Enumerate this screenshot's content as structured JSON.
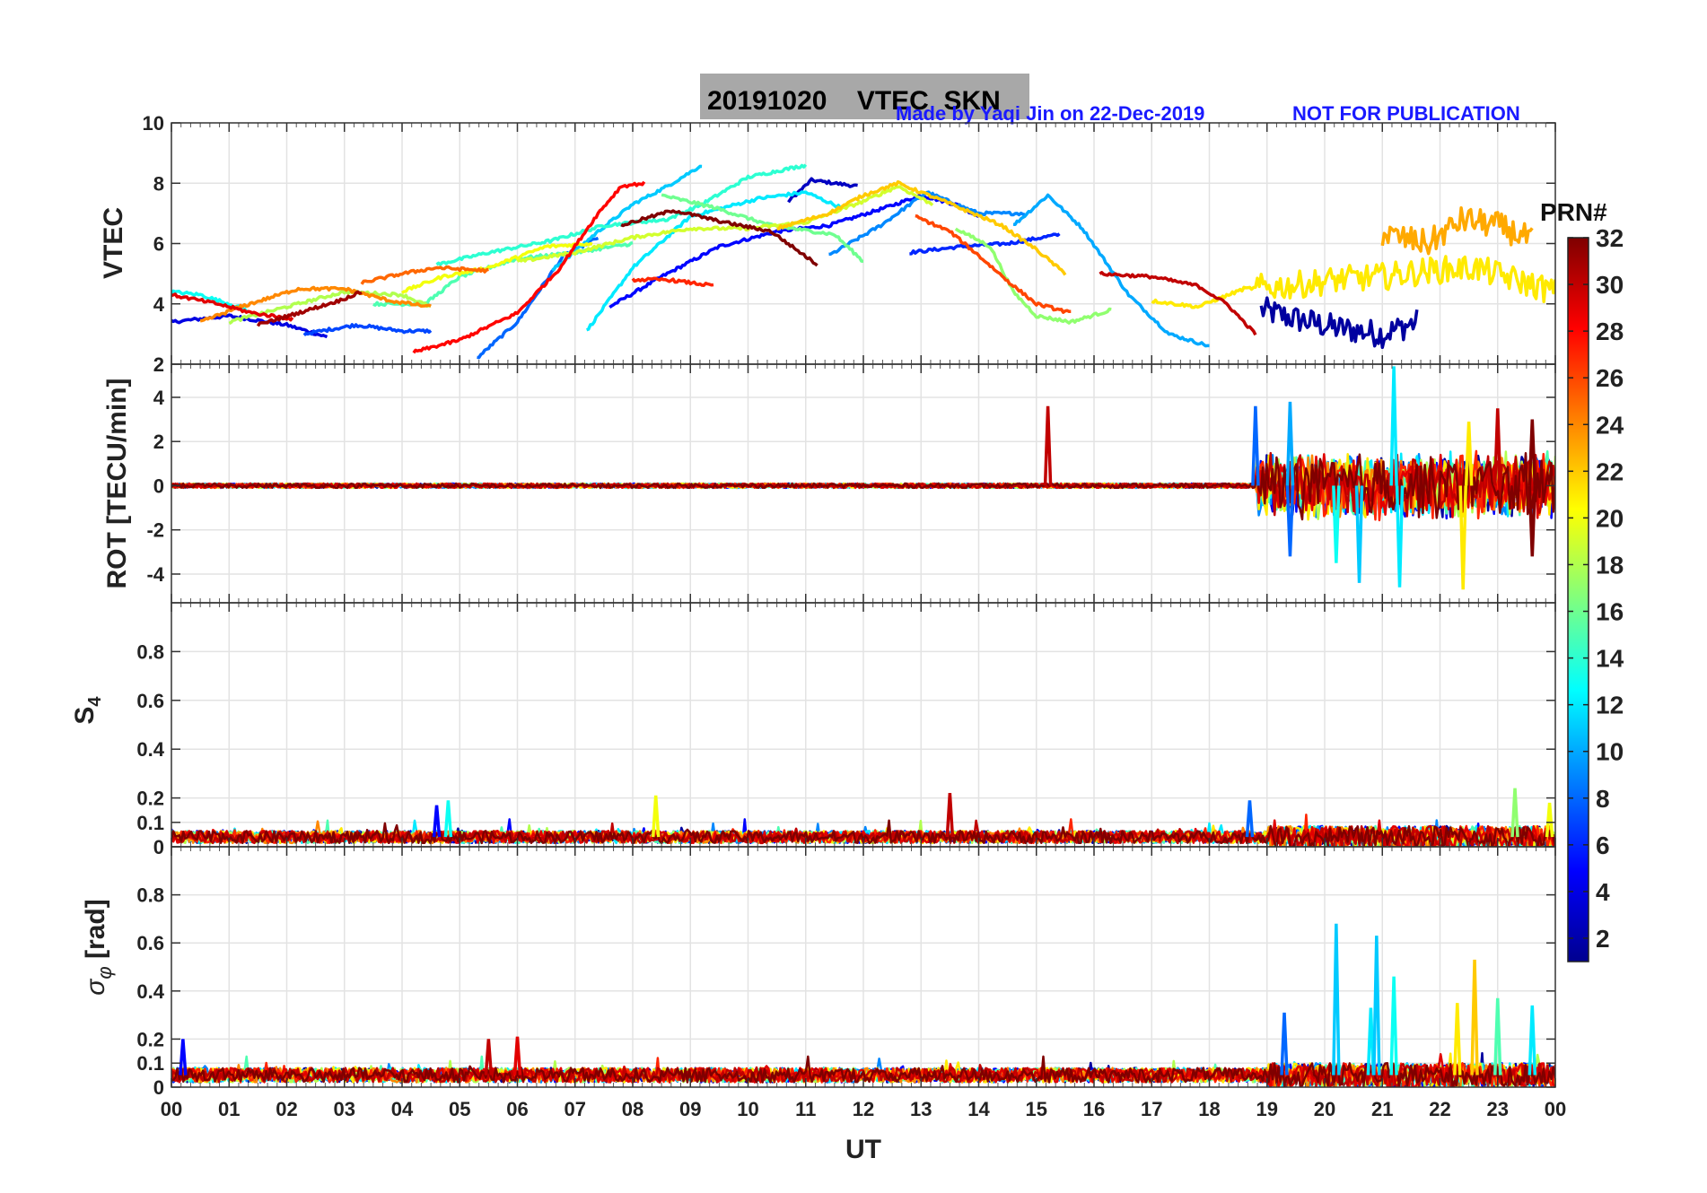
{
  "figure": {
    "title": "20191020    VTEC  SKN",
    "credit": "Made by Yaqi Jin on 22-Dec-2019",
    "notice": "NOT FOR PUBLICATION",
    "xlabel": "UT",
    "colorbar_title": "PRN#",
    "colorbar_ticks": [
      "2",
      "4",
      "6",
      "8",
      "10",
      "12",
      "14",
      "16",
      "18",
      "20",
      "22",
      "24",
      "26",
      "28",
      "30",
      "32"
    ],
    "colorbar_range": [
      1,
      32
    ],
    "colormap": "jet"
  },
  "chart_data": [
    {
      "type": "line",
      "panel": "vtec",
      "ylabel": "VTEC",
      "xlim": [
        0,
        24
      ],
      "ylim": [
        2,
        10
      ],
      "yticks": [
        "2",
        "4",
        "6",
        "8",
        "10"
      ],
      "xticks": [
        "00",
        "01",
        "02",
        "03",
        "04",
        "05",
        "06",
        "07",
        "08",
        "09",
        "10",
        "11",
        "12",
        "13",
        "14",
        "15",
        "16",
        "17",
        "18",
        "19",
        "20",
        "21",
        "22",
        "23",
        "00"
      ],
      "grid": true,
      "series": [
        {
          "prn": 2,
          "points": [
            [
              18.9,
              3.8
            ],
            [
              19.5,
              3.5
            ],
            [
              20.2,
              3.2
            ],
            [
              21.0,
              3.0
            ],
            [
              21.6,
              3.4
            ]
          ]
        },
        {
          "prn": 3,
          "points": [
            [
              10.7,
              7.4
            ],
            [
              11.1,
              8.1
            ],
            [
              11.5,
              8.0
            ],
            [
              11.9,
              7.9
            ]
          ]
        },
        {
          "prn": 4,
          "points": [
            [
              0.0,
              3.4
            ],
            [
              1.0,
              3.6
            ],
            [
              2.0,
              3.3
            ],
            [
              2.7,
              2.9
            ]
          ]
        },
        {
          "prn": 5,
          "points": [
            [
              7.6,
              3.9
            ],
            [
              8.5,
              4.9
            ],
            [
              9.5,
              5.9
            ],
            [
              10.5,
              6.4
            ],
            [
              11.4,
              6.6
            ],
            [
              12.4,
              7.2
            ],
            [
              13.0,
              7.6
            ],
            [
              13.6,
              7.3
            ],
            [
              14.0,
              6.9
            ]
          ]
        },
        {
          "prn": 6,
          "points": [
            [
              12.8,
              5.7
            ],
            [
              13.7,
              5.9
            ],
            [
              14.5,
              6.0
            ],
            [
              15.4,
              6.3
            ]
          ]
        },
        {
          "prn": 7,
          "points": [
            [
              2.3,
              3.0
            ],
            [
              3.2,
              3.3
            ],
            [
              4.0,
              3.1
            ],
            [
              4.5,
              3.1
            ]
          ]
        },
        {
          "prn": 8,
          "points": [
            [
              5.3,
              2.2
            ],
            [
              6.0,
              3.4
            ],
            [
              6.8,
              5.6
            ],
            [
              7.4,
              6.2
            ]
          ]
        },
        {
          "prn": 9,
          "points": [
            [
              11.4,
              5.6
            ],
            [
              12.3,
              6.6
            ],
            [
              13.1,
              7.7
            ],
            [
              14.0,
              7.0
            ],
            [
              14.8,
              7.0
            ]
          ]
        },
        {
          "prn": 10,
          "points": [
            [
              14.6,
              6.6
            ],
            [
              15.2,
              7.6
            ],
            [
              15.8,
              6.5
            ],
            [
              16.6,
              4.3
            ],
            [
              17.3,
              3.0
            ],
            [
              18.0,
              2.6
            ]
          ]
        },
        {
          "prn": 11,
          "points": [
            [
              6.6,
              5.1
            ],
            [
              7.4,
              6.4
            ],
            [
              8.0,
              7.3
            ],
            [
              8.6,
              7.9
            ],
            [
              9.2,
              8.6
            ]
          ]
        },
        {
          "prn": 12,
          "points": [
            [
              7.2,
              3.1
            ],
            [
              8.0,
              5.2
            ],
            [
              9.0,
              6.9
            ],
            [
              10.2,
              7.5
            ],
            [
              11.0,
              7.7
            ],
            [
              11.6,
              7.2
            ]
          ]
        },
        {
          "prn": 13,
          "points": [
            [
              0.0,
              4.4
            ],
            [
              0.5,
              4.3
            ],
            [
              1.0,
              4.0
            ],
            [
              1.3,
              3.8
            ]
          ]
        },
        {
          "prn": 14,
          "points": [
            [
              4.6,
              5.3
            ],
            [
              5.5,
              5.7
            ],
            [
              6.6,
              6.1
            ],
            [
              7.5,
              6.6
            ],
            [
              8.6,
              6.8
            ],
            [
              9.2,
              7.3
            ],
            [
              10.0,
              8.2
            ],
            [
              11.0,
              8.6
            ]
          ]
        },
        {
          "prn": 15,
          "points": [
            [
              3.5,
              4.0
            ],
            [
              4.4,
              4.0
            ],
            [
              5.0,
              4.9
            ],
            [
              6.0,
              5.5
            ],
            [
              7.0,
              5.7
            ],
            [
              8.0,
              6.0
            ]
          ]
        },
        {
          "prn": 16,
          "points": [
            [
              8.5,
              7.6
            ],
            [
              9.4,
              7.2
            ],
            [
              10.4,
              6.6
            ],
            [
              11.5,
              6.3
            ],
            [
              12.0,
              5.4
            ]
          ]
        },
        {
          "prn": 17,
          "points": [
            [
              13.6,
              6.5
            ],
            [
              14.2,
              5.9
            ],
            [
              14.6,
              4.4
            ],
            [
              15.0,
              3.6
            ],
            [
              15.6,
              3.4
            ],
            [
              16.3,
              3.8
            ]
          ]
        },
        {
          "prn": 18,
          "points": [
            [
              1.0,
              3.4
            ],
            [
              2.0,
              3.9
            ],
            [
              3.0,
              4.4
            ],
            [
              4.0,
              4.3
            ],
            [
              4.5,
              3.9
            ]
          ]
        },
        {
          "prn": 19,
          "points": [
            [
              6.0,
              5.4
            ],
            [
              7.0,
              5.7
            ],
            [
              8.0,
              6.2
            ],
            [
              9.0,
              6.5
            ],
            [
              10.0,
              6.5
            ],
            [
              11.0,
              6.7
            ],
            [
              12.0,
              7.4
            ],
            [
              12.6,
              7.9
            ],
            [
              13.2,
              7.3
            ]
          ]
        },
        {
          "prn": 20,
          "points": [
            [
              4.0,
              4.4
            ],
            [
              4.7,
              4.9
            ],
            [
              5.5,
              5.2
            ],
            [
              6.5,
              5.9
            ],
            [
              7.3,
              6.0
            ]
          ]
        },
        {
          "prn": 21,
          "points": [
            [
              17.0,
              4.1
            ],
            [
              17.8,
              3.9
            ],
            [
              18.6,
              4.5
            ],
            [
              19.4,
              4.6
            ],
            [
              20.2,
              4.8
            ],
            [
              21.0,
              4.9
            ],
            [
              21.8,
              5.1
            ],
            [
              22.6,
              5.2
            ],
            [
              23.3,
              4.8
            ],
            [
              24.0,
              4.4
            ]
          ]
        },
        {
          "prn": 22,
          "points": [
            [
              10.5,
              6.5
            ],
            [
              11.4,
              7.0
            ],
            [
              12.0,
              7.6
            ],
            [
              12.6,
              8.0
            ],
            [
              13.4,
              7.4
            ],
            [
              14.4,
              6.6
            ],
            [
              15.0,
              5.8
            ],
            [
              15.5,
              5.0
            ]
          ]
        },
        {
          "prn": 23,
          "points": [
            [
              21.0,
              6.3
            ],
            [
              21.8,
              6.0
            ],
            [
              22.4,
              6.8
            ],
            [
              23.0,
              6.6
            ],
            [
              23.6,
              6.1
            ]
          ]
        },
        {
          "prn": 24,
          "points": [
            [
              0.5,
              3.4
            ],
            [
              1.2,
              3.9
            ],
            [
              2.2,
              4.5
            ],
            [
              3.0,
              4.5
            ],
            [
              3.8,
              4.1
            ],
            [
              4.5,
              3.9
            ]
          ]
        },
        {
          "prn": 25,
          "points": [
            [
              3.3,
              4.7
            ],
            [
              4.0,
              5.0
            ],
            [
              4.6,
              5.2
            ],
            [
              5.5,
              5.1
            ]
          ]
        },
        {
          "prn": 26,
          "points": [
            [
              12.9,
              6.9
            ],
            [
              13.5,
              6.4
            ],
            [
              14.0,
              5.6
            ],
            [
              14.6,
              4.6
            ],
            [
              15.0,
              4.0
            ],
            [
              15.6,
              3.7
            ]
          ]
        },
        {
          "prn": 27,
          "points": [
            [
              8.0,
              4.8
            ],
            [
              8.6,
              4.8
            ],
            [
              9.4,
              4.6
            ]
          ]
        },
        {
          "prn": 28,
          "points": [
            [
              4.2,
              2.4
            ],
            [
              5.0,
              2.8
            ],
            [
              6.0,
              3.7
            ],
            [
              6.7,
              5.1
            ],
            [
              7.4,
              7.0
            ],
            [
              7.8,
              7.9
            ],
            [
              8.2,
              8.0
            ]
          ]
        },
        {
          "prn": 29,
          "points": [
            [
              0.0,
              4.3
            ],
            [
              0.8,
              4.0
            ],
            [
              1.4,
              3.7
            ],
            [
              2.1,
              3.5
            ]
          ]
        },
        {
          "prn": 30,
          "points": [
            [
              16.1,
              5.0
            ],
            [
              17.0,
              4.9
            ],
            [
              17.8,
              4.6
            ],
            [
              18.3,
              4.0
            ],
            [
              18.8,
              3.0
            ]
          ]
        },
        {
          "prn": 31,
          "points": [
            [
              1.5,
              3.3
            ],
            [
              2.2,
              3.7
            ],
            [
              2.9,
              4.1
            ],
            [
              3.3,
              4.4
            ]
          ]
        },
        {
          "prn": 32,
          "points": [
            [
              7.8,
              6.6
            ],
            [
              8.7,
              7.1
            ],
            [
              9.6,
              6.7
            ],
            [
              10.4,
              6.4
            ],
            [
              11.2,
              5.3
            ]
          ]
        }
      ]
    },
    {
      "type": "line",
      "panel": "rot",
      "ylabel": "ROT [TECU/min]",
      "xlim": [
        0,
        24
      ],
      "ylim": [
        -5.3,
        5.5
      ],
      "yticks": [
        "-4",
        "-2",
        "0",
        "2",
        "4"
      ],
      "grid": true,
      "baseline": 0,
      "spikes": [
        {
          "prn": 30,
          "t": 15.2,
          "v": 3.6
        },
        {
          "prn": 8,
          "t": 18.8,
          "v": 3.6
        },
        {
          "prn": 10,
          "t": 19.4,
          "v": 3.8
        },
        {
          "prn": 8,
          "t": 19.4,
          "v": -3.2
        },
        {
          "prn": 13,
          "t": 20.2,
          "v": -3.5
        },
        {
          "prn": 11,
          "t": 20.6,
          "v": -4.4
        },
        {
          "prn": 12,
          "t": 21.2,
          "v": 5.4
        },
        {
          "prn": 12,
          "t": 21.3,
          "v": -4.6
        },
        {
          "prn": 21,
          "t": 22.4,
          "v": -4.7
        },
        {
          "prn": 21,
          "t": 22.5,
          "v": 2.9
        },
        {
          "prn": 30,
          "t": 23.0,
          "v": 3.5
        },
        {
          "prn": 32,
          "t": 23.6,
          "v": -3.2
        },
        {
          "prn": 32,
          "t": 23.6,
          "v": 3.0
        }
      ]
    },
    {
      "type": "line",
      "panel": "s4",
      "ylabel": "S4",
      "xlim": [
        0,
        24
      ],
      "ylim": [
        0,
        1.0
      ],
      "yticks": [
        "0",
        "0.1",
        "0.2",
        "0.4",
        "0.6",
        "0.8"
      ],
      "grid": true,
      "baseline": 0.04,
      "spikes": [
        {
          "prn": 5,
          "t": 4.6,
          "v": 0.17
        },
        {
          "prn": 13,
          "t": 4.8,
          "v": 0.19
        },
        {
          "prn": 20,
          "t": 8.4,
          "v": 0.21
        },
        {
          "prn": 30,
          "t": 13.5,
          "v": 0.22
        },
        {
          "prn": 8,
          "t": 18.7,
          "v": 0.19
        },
        {
          "prn": 17,
          "t": 23.3,
          "v": 0.24
        },
        {
          "prn": 20,
          "t": 23.9,
          "v": 0.18
        }
      ]
    },
    {
      "type": "line",
      "panel": "sigma_phi",
      "ylabel": "σ φ [rad]",
      "xlim": [
        0,
        24
      ],
      "ylim": [
        0,
        1.0
      ],
      "yticks": [
        "0",
        "0.1",
        "0.2",
        "0.4",
        "0.6",
        "0.8"
      ],
      "grid": true,
      "baseline": 0.05,
      "spikes": [
        {
          "prn": 5,
          "t": 0.2,
          "v": 0.2
        },
        {
          "prn": 30,
          "t": 5.5,
          "v": 0.2
        },
        {
          "prn": 29,
          "t": 6.0,
          "v": 0.21
        },
        {
          "prn": 8,
          "t": 19.3,
          "v": 0.31
        },
        {
          "prn": 11,
          "t": 20.2,
          "v": 0.68
        },
        {
          "prn": 12,
          "t": 20.8,
          "v": 0.33
        },
        {
          "prn": 11,
          "t": 20.9,
          "v": 0.63
        },
        {
          "prn": 13,
          "t": 21.2,
          "v": 0.46
        },
        {
          "prn": 21,
          "t": 22.3,
          "v": 0.35
        },
        {
          "prn": 22,
          "t": 22.6,
          "v": 0.53
        },
        {
          "prn": 15,
          "t": 23.0,
          "v": 0.37
        },
        {
          "prn": 12,
          "t": 23.6,
          "v": 0.34
        }
      ]
    }
  ]
}
